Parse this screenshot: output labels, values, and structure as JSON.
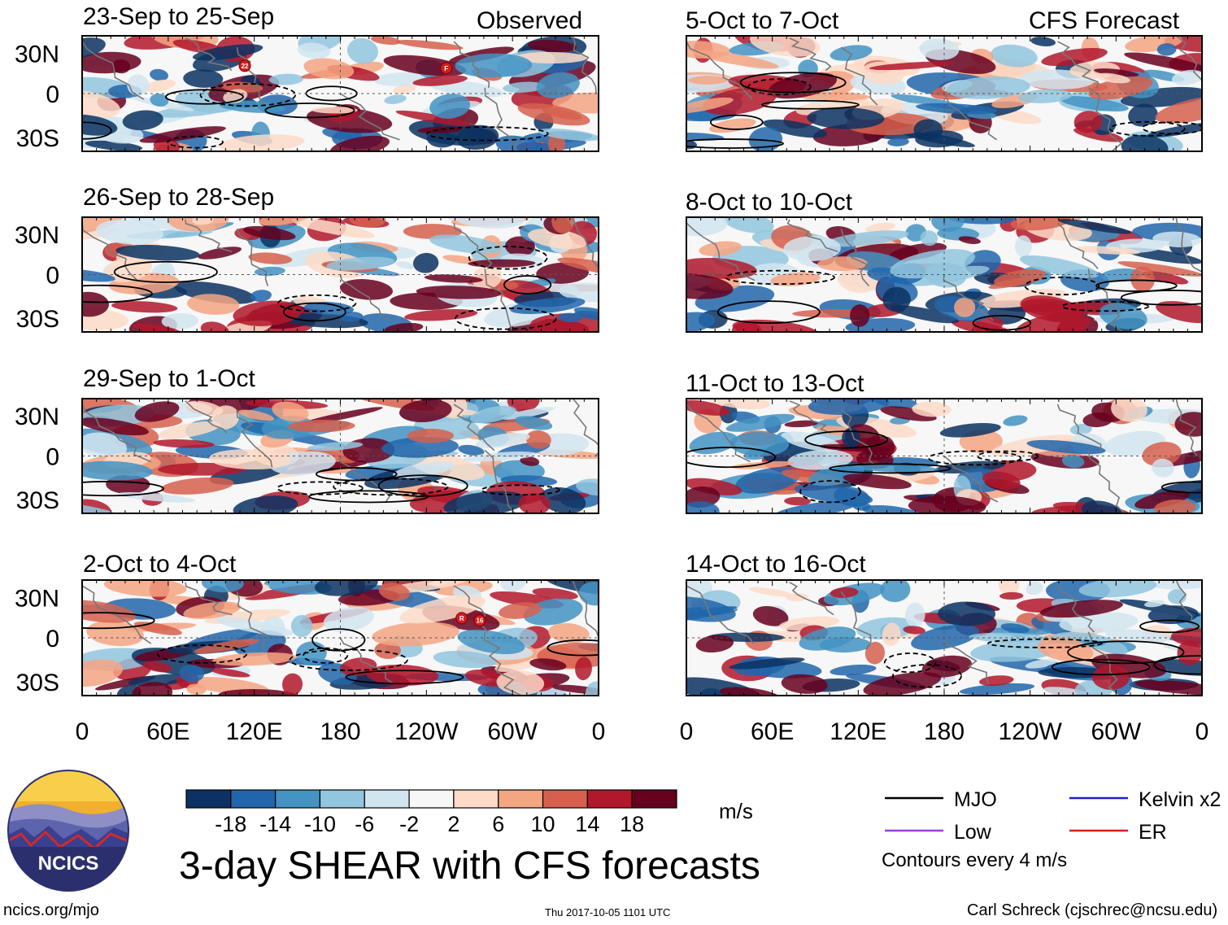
{
  "figure": {
    "title": "3-day SHEAR with CFS forecasts",
    "observed_label": "Observed",
    "forecast_label": "CFS Forecast",
    "footer_left": "ncics.org/mjo",
    "footer_center": "Thu 2017-10-05 1101 UTC",
    "footer_right": "Carl Schreck (cjschrec@ncsu.edu)",
    "logo_text": "NCICS",
    "units": "m/s",
    "contour_note": "Contours every 4 m/s"
  },
  "chart_data": {
    "type": "heatmap",
    "variable": "vertical wind shear anomaly",
    "units": "m/s",
    "lat_ticks": [
      "30N",
      "0",
      "30S"
    ],
    "lon_ticks": [
      "0",
      "60E",
      "120E",
      "180",
      "120W",
      "60W",
      "0"
    ],
    "colorbar": {
      "tick_labels": [
        "-18",
        "-14",
        "-10",
        "-6",
        "-2",
        "2",
        "6",
        "10",
        "14",
        "18"
      ],
      "colors": [
        "#0b3262",
        "#2166ac",
        "#4393c3",
        "#92c5de",
        "#d1e5f0",
        "#f7f7f7",
        "#fddbc7",
        "#f4a582",
        "#d6604d",
        "#b2182b",
        "#67001f"
      ]
    },
    "panels_observed": [
      {
        "period": "23-Sep to 25-Sep",
        "storm_markers": [
          "22",
          "F"
        ]
      },
      {
        "period": "26-Sep to 28-Sep",
        "storm_markers": []
      },
      {
        "period": "29-Sep to 1-Oct",
        "storm_markers": []
      },
      {
        "period": "2-Oct to 4-Oct",
        "storm_markers": [
          "R",
          "16"
        ]
      }
    ],
    "panels_forecast": [
      {
        "period": "5-Oct to 7-Oct"
      },
      {
        "period": "8-Oct to 10-Oct"
      },
      {
        "period": "11-Oct to 13-Oct"
      },
      {
        "period": "14-Oct to 16-Oct"
      }
    ],
    "legend": [
      {
        "label": "MJO",
        "color": "#000000"
      },
      {
        "label": "Kelvin x2",
        "color": "#1f1fcc"
      },
      {
        "label": "Low",
        "color": "#9a3fd6"
      },
      {
        "label": "ER",
        "color": "#d41c1c"
      }
    ]
  }
}
